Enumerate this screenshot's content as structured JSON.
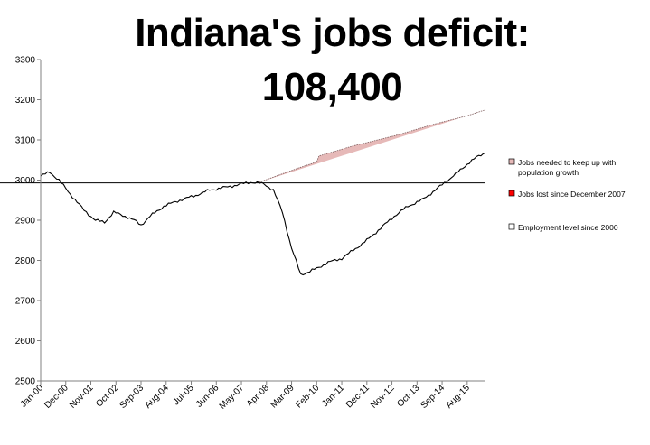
{
  "chart_data": {
    "type": "area",
    "title_line1": "Indiana's jobs deficit:",
    "title_line2": "108,400",
    "ylim": [
      2500,
      3300
    ],
    "y_ticks": [
      2500,
      2600,
      2700,
      2800,
      2900,
      3000,
      3100,
      3200,
      3300
    ],
    "x_ticks": [
      "Jan-00",
      "Dec-00",
      "Nov-01",
      "Oct-02",
      "Sep-03",
      "Aug-04",
      "Jul-05",
      "Jun-06",
      "May-07",
      "Apr-08",
      "Mar-09",
      "Feb-10",
      "Jan-11",
      "Dec-11",
      "Nov-12",
      "Oct-13",
      "Sep-14",
      "Aug-15"
    ],
    "x_start": "Jan-00",
    "x_end": "Apr-16",
    "baseline_value": 2993,
    "baseline_start": "Dec-07",
    "employment_keypoints": [
      {
        "date": "2000-01",
        "value": 3010
      },
      {
        "date": "2000-05",
        "value": 3020
      },
      {
        "date": "2000-09",
        "value": 3000
      },
      {
        "date": "2001-02",
        "value": 2965
      },
      {
        "date": "2001-08",
        "value": 2925
      },
      {
        "date": "2002-01",
        "value": 2900
      },
      {
        "date": "2002-05",
        "value": 2895
      },
      {
        "date": "2002-09",
        "value": 2920
      },
      {
        "date": "2003-02",
        "value": 2910
      },
      {
        "date": "2003-06",
        "value": 2900
      },
      {
        "date": "2003-09",
        "value": 2888
      },
      {
        "date": "2004-01",
        "value": 2910
      },
      {
        "date": "2004-07",
        "value": 2935
      },
      {
        "date": "2005-02",
        "value": 2950
      },
      {
        "date": "2005-08",
        "value": 2960
      },
      {
        "date": "2006-03",
        "value": 2975
      },
      {
        "date": "2006-10",
        "value": 2982
      },
      {
        "date": "2007-05",
        "value": 2990
      },
      {
        "date": "2007-09",
        "value": 2995
      },
      {
        "date": "2007-12",
        "value": 2993
      },
      {
        "date": "2008-03",
        "value": 2990
      },
      {
        "date": "2008-07",
        "value": 2975
      },
      {
        "date": "2008-11",
        "value": 2920
      },
      {
        "date": "2009-03",
        "value": 2830
      },
      {
        "date": "2009-07",
        "value": 2765
      },
      {
        "date": "2009-10",
        "value": 2770
      },
      {
        "date": "2010-02",
        "value": 2780
      },
      {
        "date": "2010-07",
        "value": 2795
      },
      {
        "date": "2011-01",
        "value": 2805
      },
      {
        "date": "2011-06",
        "value": 2825
      },
      {
        "date": "2011-12",
        "value": 2850
      },
      {
        "date": "2012-06",
        "value": 2880
      },
      {
        "date": "2012-12",
        "value": 2910
      },
      {
        "date": "2013-06",
        "value": 2935
      },
      {
        "date": "2013-12",
        "value": 2950
      },
      {
        "date": "2014-06",
        "value": 2975
      },
      {
        "date": "2014-10",
        "value": 2993
      },
      {
        "date": "2015-03",
        "value": 3015
      },
      {
        "date": "2015-08",
        "value": 3040
      },
      {
        "date": "2016-01",
        "value": 3060
      },
      {
        "date": "2016-04",
        "value": 3068
      }
    ],
    "needed_keypoints": [
      {
        "date": "2007-12",
        "value": 2993
      },
      {
        "date": "2009-06",
        "value": 3030
      },
      {
        "date": "2010-02",
        "value": 3045
      },
      {
        "date": "2010-03",
        "value": 3060
      },
      {
        "date": "2011-06",
        "value": 3085
      },
      {
        "date": "2012-12",
        "value": 3110
      },
      {
        "date": "2014-06",
        "value": 3140
      },
      {
        "date": "2015-08",
        "value": 3160
      },
      {
        "date": "2016-04",
        "value": 3175
      }
    ],
    "legend": [
      {
        "label_lines": [
          "Jobs needed to keep up with",
          "population growth"
        ],
        "color": "#e6b9b8"
      },
      {
        "label_lines": [
          "Jobs lost since December 2007"
        ],
        "color": "#ff0000"
      },
      {
        "label_lines": [
          "Employment level since 2000"
        ],
        "color": "#ffffff"
      }
    ],
    "colors": {
      "needed_fill": "#e6b9b8",
      "lost_fill": "#ff0000",
      "line": "#000000",
      "axis": "#808080"
    }
  }
}
